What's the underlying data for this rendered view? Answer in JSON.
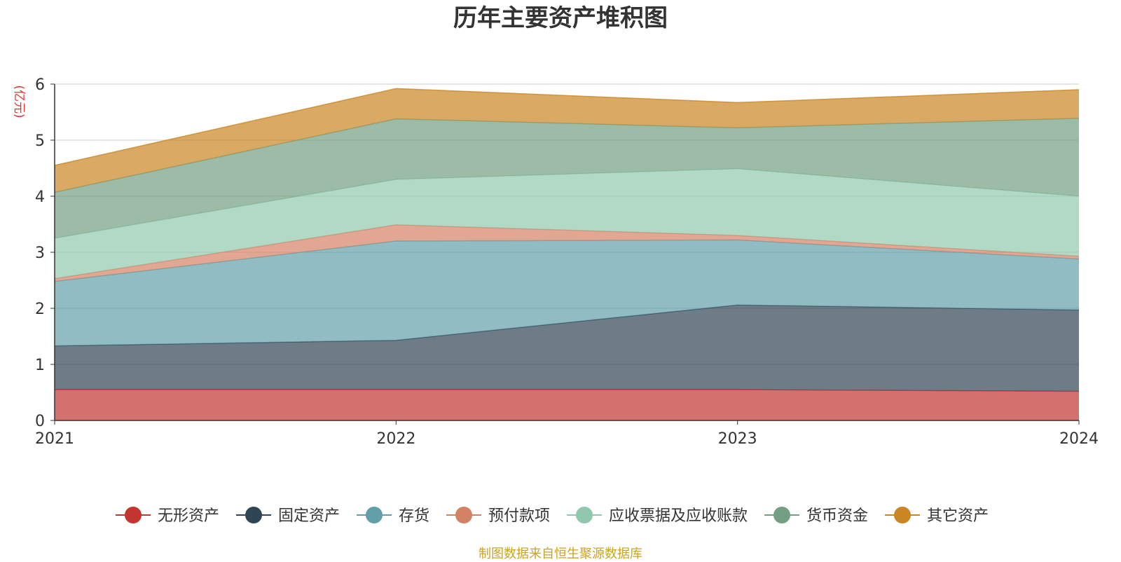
{
  "chart_data": {
    "type": "area",
    "stacked": true,
    "title": "历年主要资产堆积图",
    "ylabel": "(亿元)",
    "xlabel": "",
    "x": [
      "2021",
      "2022",
      "2023",
      "2024"
    ],
    "ylim": [
      0,
      6
    ],
    "yticks": [
      "0",
      "1",
      "2",
      "3",
      "4",
      "5",
      "6"
    ],
    "grid": true,
    "legend_position": "bottom",
    "series": [
      {
        "name": "无形资产",
        "color": "#c23531",
        "values": [
          0.55,
          0.55,
          0.55,
          0.52
        ]
      },
      {
        "name": "固定资产",
        "color": "#2f4554",
        "values": [
          0.78,
          0.88,
          1.51,
          1.45
        ]
      },
      {
        "name": "存货",
        "color": "#61a0a8",
        "values": [
          1.15,
          1.77,
          1.16,
          0.91
        ]
      },
      {
        "name": "预付款项",
        "color": "#d48265",
        "values": [
          0.05,
          0.29,
          0.08,
          0.05
        ]
      },
      {
        "name": "应收票据及应收账款",
        "color": "#91c7ae",
        "values": [
          0.72,
          0.81,
          1.19,
          1.07
        ]
      },
      {
        "name": "货币资金",
        "color": "#749f83",
        "values": [
          0.82,
          1.08,
          0.73,
          1.39
        ]
      },
      {
        "name": "其它资产",
        "color": "#ca8622",
        "values": [
          0.48,
          0.54,
          0.45,
          0.51
        ]
      }
    ],
    "source": "制图数据来自恒生聚源数据库"
  }
}
